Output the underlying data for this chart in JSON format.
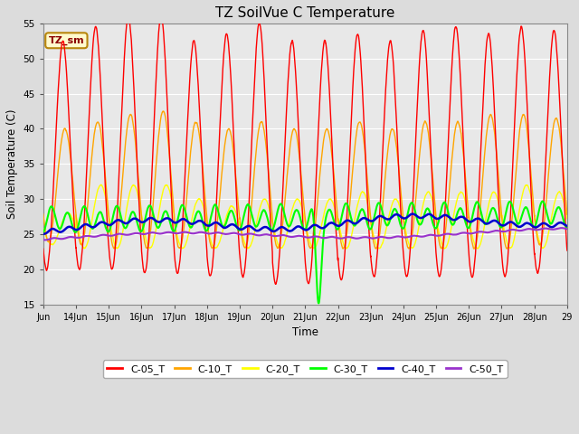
{
  "title": "TZ SoilVue C Temperature",
  "ylabel": "Soil Temperature (C)",
  "xlabel": "Time",
  "ylim": [
    15,
    55
  ],
  "bg_color": "#dcdcdc",
  "plot_bg_color": "#e8e8e8",
  "series": {
    "C-05_T": {
      "color": "#ff0000",
      "lw": 1.0
    },
    "C-10_T": {
      "color": "#ffa500",
      "lw": 1.0
    },
    "C-20_T": {
      "color": "#ffff00",
      "lw": 1.0
    },
    "C-30_T": {
      "color": "#00ff00",
      "lw": 1.5
    },
    "C-40_T": {
      "color": "#0000cd",
      "lw": 1.8
    },
    "C-50_T": {
      "color": "#9932cc",
      "lw": 1.5
    }
  },
  "xtick_labels": [
    "Jun",
    "14Jun",
    "15Jun",
    "16Jun",
    "17Jun",
    "18Jun",
    "19Jun",
    "20Jun",
    "21Jun",
    "22Jun",
    "23Jun",
    "24Jun",
    "25Jun",
    "26Jun",
    "27Jun",
    "28Jun",
    "29"
  ],
  "ytick_labels": [
    15,
    20,
    25,
    30,
    35,
    40,
    45,
    50,
    55
  ],
  "legend_label": "TZ_sm",
  "legend_bg": "#fffacd",
  "legend_border": "#b8860b"
}
